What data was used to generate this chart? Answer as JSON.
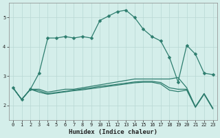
{
  "xlabel": "Humidex (Indice chaleur)",
  "x": [
    0,
    1,
    2,
    3,
    4,
    5,
    6,
    7,
    8,
    9,
    10,
    11,
    12,
    13,
    14,
    15,
    16,
    17,
    18,
    19,
    20,
    21,
    22,
    23
  ],
  "line1": [
    2.6,
    2.2,
    2.55,
    3.1,
    4.3,
    4.3,
    4.35,
    4.3,
    4.35,
    4.3,
    4.9,
    5.05,
    5.2,
    5.25,
    5.0,
    4.6,
    4.35,
    4.2,
    3.65,
    2.8,
    4.05,
    3.75,
    3.1,
    3.05
  ],
  "line2": [
    2.6,
    2.2,
    2.55,
    2.55,
    2.45,
    2.5,
    2.55,
    2.55,
    2.6,
    2.65,
    2.7,
    2.75,
    2.8,
    2.85,
    2.9,
    2.9,
    2.9,
    2.9,
    2.9,
    2.95,
    2.6,
    1.95,
    2.4,
    1.9
  ],
  "line3": [
    2.6,
    2.2,
    2.55,
    2.5,
    2.4,
    2.44,
    2.48,
    2.52,
    2.56,
    2.6,
    2.65,
    2.68,
    2.72,
    2.76,
    2.8,
    2.82,
    2.82,
    2.78,
    2.6,
    2.55,
    2.55,
    1.95,
    2.4,
    1.9
  ],
  "line4": [
    2.6,
    2.2,
    2.55,
    2.45,
    2.38,
    2.42,
    2.46,
    2.5,
    2.53,
    2.57,
    2.61,
    2.65,
    2.69,
    2.73,
    2.77,
    2.79,
    2.79,
    2.73,
    2.52,
    2.47,
    2.52,
    1.93,
    2.38,
    1.88
  ],
  "line_color": "#2d7d6e",
  "bg_color": "#d4eeea",
  "grid_color": "#b8d8d4",
  "ylim": [
    1.5,
    5.5
  ],
  "yticks": [
    2,
    3,
    4,
    5
  ],
  "xticks": [
    0,
    1,
    2,
    3,
    4,
    5,
    6,
    7,
    8,
    9,
    10,
    11,
    12,
    13,
    14,
    15,
    16,
    17,
    18,
    19,
    20,
    21,
    22,
    23
  ],
  "markersize": 2.5,
  "linewidth": 0.9,
  "tick_fontsize": 5.0,
  "xlabel_fontsize": 6.5
}
